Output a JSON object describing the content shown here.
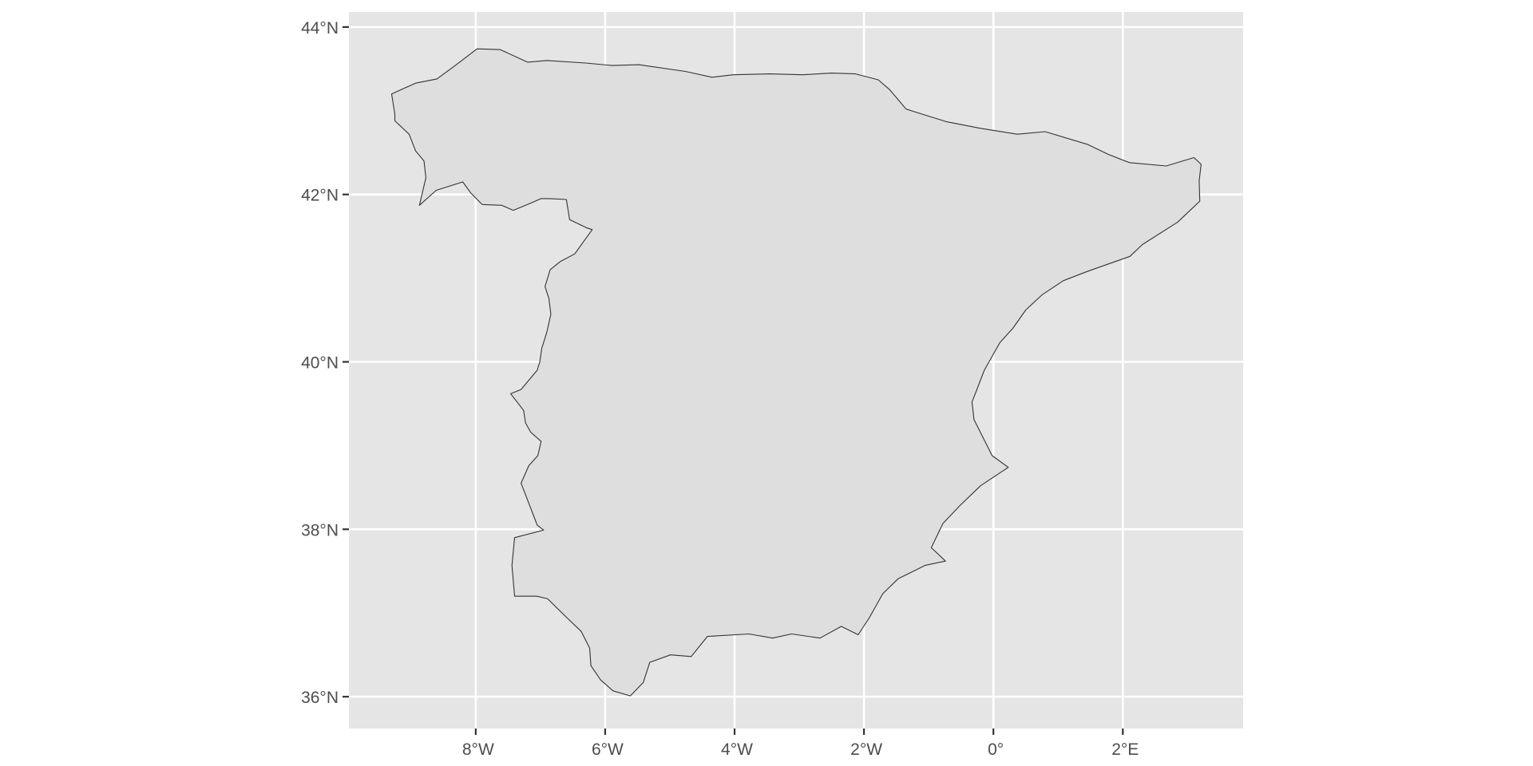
{
  "chart_data": {
    "type": "map",
    "region": "Spain (Iberian Peninsula, mainland)",
    "projection": "equirectangular lon/lat",
    "xlim": [
      -9.96,
      3.86
    ],
    "ylim": [
      35.62,
      44.18
    ],
    "x_ticks": [
      {
        "value": -8,
        "label": "8°W"
      },
      {
        "value": -6,
        "label": "6°W"
      },
      {
        "value": -4,
        "label": "4°W"
      },
      {
        "value": -2,
        "label": "2°W"
      },
      {
        "value": 0,
        "label": "0°"
      },
      {
        "value": 2,
        "label": "2°E"
      }
    ],
    "y_ticks": [
      {
        "value": 36,
        "label": "36°N"
      },
      {
        "value": 38,
        "label": "38°N"
      },
      {
        "value": 40,
        "label": "40°N"
      },
      {
        "value": 42,
        "label": "42°N"
      },
      {
        "value": 44,
        "label": "44°N"
      }
    ],
    "panel_background": "#e5e5e5",
    "gridline_color": "#ffffff",
    "fill_color": "#dedede",
    "border_color": "#333333",
    "grid": true,
    "boundary": [
      [
        -8.87,
        41.87
      ],
      [
        -8.61,
        42.05
      ],
      [
        -8.2,
        42.15
      ],
      [
        -8.08,
        42.02
      ],
      [
        -7.9,
        41.88
      ],
      [
        -7.6,
        41.87
      ],
      [
        -7.42,
        41.81
      ],
      [
        -7.2,
        41.88
      ],
      [
        -6.99,
        41.95
      ],
      [
        -6.86,
        41.95
      ],
      [
        -6.6,
        41.94
      ],
      [
        -6.55,
        41.7
      ],
      [
        -6.28,
        41.6
      ],
      [
        -6.2,
        41.58
      ],
      [
        -6.47,
        41.29
      ],
      [
        -6.69,
        41.2
      ],
      [
        -6.85,
        41.1
      ],
      [
        -6.93,
        40.9
      ],
      [
        -6.87,
        40.76
      ],
      [
        -6.84,
        40.57
      ],
      [
        -6.9,
        40.36
      ],
      [
        -6.98,
        40.16
      ],
      [
        -7.01,
        40.0
      ],
      [
        -7.05,
        39.9
      ],
      [
        -7.3,
        39.67
      ],
      [
        -7.46,
        39.62
      ],
      [
        -7.26,
        39.42
      ],
      [
        -7.23,
        39.27
      ],
      [
        -7.15,
        39.16
      ],
      [
        -6.99,
        39.05
      ],
      [
        -7.04,
        38.88
      ],
      [
        -7.18,
        38.76
      ],
      [
        -7.3,
        38.55
      ],
      [
        -7.11,
        38.17
      ],
      [
        -7.05,
        38.05
      ],
      [
        -6.95,
        37.99
      ],
      [
        -7.4,
        37.9
      ],
      [
        -7.44,
        37.57
      ],
      [
        -7.4,
        37.2
      ],
      [
        -7.06,
        37.2
      ],
      [
        -6.89,
        37.17
      ],
      [
        -6.6,
        36.95
      ],
      [
        -6.37,
        36.78
      ],
      [
        -6.24,
        36.58
      ],
      [
        -6.22,
        36.37
      ],
      [
        -6.07,
        36.2
      ],
      [
        -5.88,
        36.07
      ],
      [
        -5.61,
        36.01
      ],
      [
        -5.41,
        36.17
      ],
      [
        -5.31,
        36.41
      ],
      [
        -4.99,
        36.5
      ],
      [
        -4.67,
        36.48
      ],
      [
        -4.42,
        36.72
      ],
      [
        -3.78,
        36.75
      ],
      [
        -3.41,
        36.7
      ],
      [
        -3.12,
        36.75
      ],
      [
        -2.68,
        36.7
      ],
      [
        -2.35,
        36.84
      ],
      [
        -2.09,
        36.74
      ],
      [
        -1.92,
        36.94
      ],
      [
        -1.71,
        37.23
      ],
      [
        -1.47,
        37.41
      ],
      [
        -1.05,
        37.57
      ],
      [
        -0.74,
        37.62
      ],
      [
        -0.96,
        37.78
      ],
      [
        -0.78,
        38.07
      ],
      [
        -0.52,
        38.28
      ],
      [
        -0.2,
        38.52
      ],
      [
        0.23,
        38.74
      ],
      [
        -0.02,
        38.88
      ],
      [
        -0.3,
        39.31
      ],
      [
        -0.33,
        39.52
      ],
      [
        -0.14,
        39.9
      ],
      [
        0.1,
        40.23
      ],
      [
        0.3,
        40.4
      ],
      [
        0.5,
        40.62
      ],
      [
        0.75,
        40.8
      ],
      [
        1.08,
        40.97
      ],
      [
        1.45,
        41.08
      ],
      [
        2.11,
        41.26
      ],
      [
        2.3,
        41.4
      ],
      [
        2.85,
        41.67
      ],
      [
        3.19,
        41.92
      ],
      [
        3.18,
        42.16
      ],
      [
        3.21,
        42.36
      ],
      [
        3.1,
        42.44
      ],
      [
        2.67,
        42.34
      ],
      [
        2.1,
        42.38
      ],
      [
        1.77,
        42.48
      ],
      [
        1.45,
        42.6
      ],
      [
        0.8,
        42.75
      ],
      [
        0.37,
        42.72
      ],
      [
        -0.2,
        42.79
      ],
      [
        -0.73,
        42.87
      ],
      [
        -1.35,
        43.02
      ],
      [
        -1.6,
        43.25
      ],
      [
        -1.78,
        43.37
      ],
      [
        -2.13,
        43.44
      ],
      [
        -2.5,
        43.45
      ],
      [
        -2.95,
        43.43
      ],
      [
        -3.46,
        43.44
      ],
      [
        -4.02,
        43.43
      ],
      [
        -4.35,
        43.4
      ],
      [
        -4.76,
        43.47
      ],
      [
        -5.48,
        43.55
      ],
      [
        -5.89,
        43.54
      ],
      [
        -6.3,
        43.57
      ],
      [
        -6.9,
        43.6
      ],
      [
        -7.2,
        43.58
      ],
      [
        -7.62,
        43.73
      ],
      [
        -7.98,
        43.74
      ],
      [
        -8.3,
        43.55
      ],
      [
        -8.6,
        43.38
      ],
      [
        -8.93,
        43.33
      ],
      [
        -9.3,
        43.2
      ],
      [
        -9.25,
        42.96
      ],
      [
        -9.25,
        42.88
      ],
      [
        -9.03,
        42.72
      ],
      [
        -8.93,
        42.52
      ],
      [
        -8.8,
        42.4
      ],
      [
        -8.77,
        42.2
      ],
      [
        -8.87,
        41.87
      ]
    ]
  }
}
